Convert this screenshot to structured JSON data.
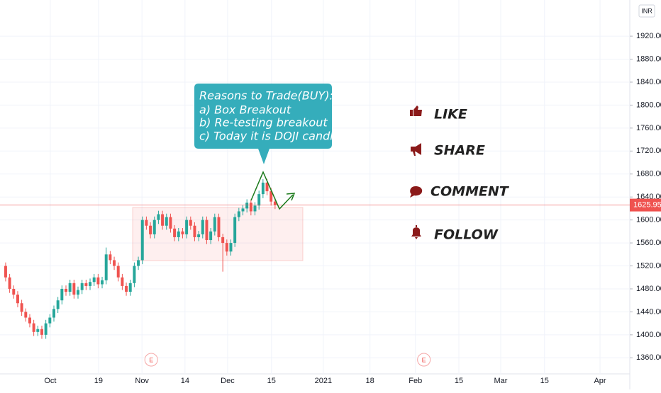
{
  "chart_data": {
    "type": "candlestick",
    "currency": "INR",
    "up_color": "#26a69a",
    "down_color": "#ef5350",
    "grid": true,
    "xlim": [
      -1.4,
      155.2
    ],
    "ylim": [
      1332,
      1983
    ],
    "yticks": [
      {
        "value": 1360,
        "label": "1360.00"
      },
      {
        "value": 1400,
        "label": "1400.00"
      },
      {
        "value": 1440,
        "label": "1440.00"
      },
      {
        "value": 1480,
        "label": "1480.00"
      },
      {
        "value": 1520,
        "label": "1520.00"
      },
      {
        "value": 1560,
        "label": "1560.00"
      },
      {
        "value": 1600,
        "label": "1600.00"
      },
      {
        "value": 1640,
        "label": "1640.00"
      },
      {
        "value": 1680,
        "label": "1680.00"
      },
      {
        "value": 1720,
        "label": "1720.00"
      },
      {
        "value": 1760,
        "label": "1760.00"
      },
      {
        "value": 1800,
        "label": "1800.00"
      },
      {
        "value": 1840,
        "label": "1840.00"
      },
      {
        "value": 1880,
        "label": "1880.00"
      },
      {
        "value": 1920,
        "label": "1920.00"
      }
    ],
    "xticks": [
      {
        "value": 11.1,
        "label": "Oct"
      },
      {
        "value": 23.1,
        "label": "19"
      },
      {
        "value": 33.9,
        "label": "Nov"
      },
      {
        "value": 44.6,
        "label": "14"
      },
      {
        "value": 55.2,
        "label": "Dec"
      },
      {
        "value": 66.1,
        "label": "15"
      },
      {
        "value": 79,
        "label": "2021"
      },
      {
        "value": 90.6,
        "label": "18"
      },
      {
        "value": 101.9,
        "label": "Feb"
      },
      {
        "value": 112.7,
        "label": "15"
      },
      {
        "value": 123.1,
        "label": "Mar"
      },
      {
        "value": 134,
        "label": "15"
      },
      {
        "value": 147.8,
        "label": "Apr"
      }
    ],
    "last_price": {
      "value": 1625.95,
      "label": "1625.95"
    },
    "events": [
      {
        "value": 36.2,
        "label": "E"
      },
      {
        "value": 104,
        "label": "E"
      }
    ],
    "open": [
      1520,
      1500,
      1480,
      1470,
      1455,
      1440,
      1430,
      1420,
      1405,
      1410,
      1400,
      1420,
      1430,
      1445,
      1460,
      1480,
      1475,
      1490,
      1470,
      1478,
      1490,
      1485,
      1492,
      1500,
      1488,
      1495,
      1540,
      1530,
      1520,
      1500,
      1485,
      1475,
      1490,
      1520,
      1530,
      1600,
      1590,
      1575,
      1600,
      1610,
      1590,
      1605,
      1585,
      1570,
      1580,
      1575,
      1600,
      1590,
      1570,
      1575,
      1600,
      1565,
      1580,
      1605,
      1570,
      1560,
      1545,
      1560,
      1605,
      1615,
      1620,
      1630,
      1615,
      1625,
      1645,
      1665,
      1650,
      1632
    ],
    "high": [
      1526,
      1506,
      1486,
      1476,
      1461,
      1446,
      1436,
      1426,
      1416,
      1416,
      1426,
      1436,
      1451,
      1466,
      1486,
      1486,
      1496,
      1496,
      1484,
      1496,
      1496,
      1498,
      1506,
      1506,
      1501,
      1552,
      1546,
      1536,
      1526,
      1506,
      1491,
      1496,
      1526,
      1536,
      1606,
      1606,
      1596,
      1606,
      1616,
      1616,
      1611,
      1611,
      1591,
      1586,
      1586,
      1606,
      1606,
      1596,
      1581,
      1606,
      1606,
      1586,
      1611,
      1611,
      1576,
      1566,
      1566,
      1611,
      1621,
      1626,
      1636,
      1636,
      1631,
      1651,
      1671,
      1671,
      1656,
      1638
    ],
    "low": [
      1493,
      1473,
      1463,
      1448,
      1433,
      1423,
      1413,
      1398,
      1398,
      1393,
      1393,
      1413,
      1423,
      1438,
      1453,
      1468,
      1468,
      1463,
      1463,
      1471,
      1478,
      1478,
      1485,
      1481,
      1481,
      1488,
      1523,
      1513,
      1493,
      1478,
      1468,
      1468,
      1483,
      1513,
      1523,
      1583,
      1568,
      1568,
      1593,
      1583,
      1583,
      1578,
      1563,
      1563,
      1568,
      1568,
      1583,
      1563,
      1563,
      1568,
      1558,
      1558,
      1573,
      1563,
      1510,
      1538,
      1538,
      1553,
      1598,
      1608,
      1613,
      1608,
      1608,
      1618,
      1638,
      1643,
      1625,
      1619
    ],
    "close": [
      1500,
      1480,
      1470,
      1455,
      1440,
      1430,
      1420,
      1405,
      1410,
      1400,
      1420,
      1430,
      1445,
      1460,
      1480,
      1475,
      1490,
      1470,
      1478,
      1490,
      1485,
      1492,
      1500,
      1488,
      1495,
      1540,
      1530,
      1520,
      1500,
      1485,
      1475,
      1490,
      1520,
      1530,
      1600,
      1590,
      1575,
      1600,
      1610,
      1590,
      1605,
      1585,
      1570,
      1580,
      1575,
      1600,
      1590,
      1570,
      1575,
      1600,
      1565,
      1580,
      1605,
      1570,
      1560,
      1545,
      1560,
      1605,
      1615,
      1620,
      1630,
      1615,
      1625,
      1645,
      1665,
      1650,
      1632,
      1626
    ]
  },
  "callout": {
    "lines": [
      "Reasons to Trade(BUY):",
      "a) Box Breakout",
      "b) Re-testing breakout",
      "c) Today it is DOJI candle"
    ]
  },
  "actions": [
    "LIKE",
    "SHARE",
    "COMMENT",
    "FOLLOW"
  ]
}
